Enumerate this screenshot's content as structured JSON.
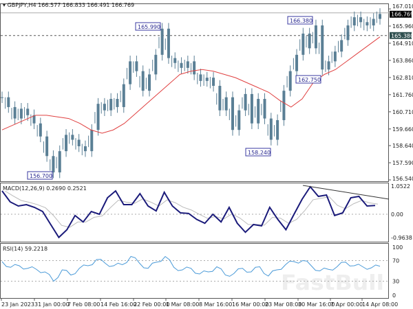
{
  "header": {
    "symbol": "GBPJPY,H4",
    "ohlc": "166.577 166.833 166.491 166.769"
  },
  "watermark": "FastBull",
  "colors": {
    "candle": "#5a7f95",
    "ma": "#e04040",
    "macd": "#1a1a7a",
    "signal": "#bbbbbb",
    "rsi": "#4a9ad8",
    "label_border": "#3a3aa0"
  },
  "chart_data": [
    {
      "type": "bar",
      "title": "GBPJPY,H4",
      "ylim": [
        156.54,
        167.01
      ],
      "yticks": [
        "167.010",
        "165.960",
        "164.910",
        "163.860",
        "162.810",
        "161.760",
        "160.710",
        "159.660",
        "158.640",
        "157.590",
        "156.540"
      ],
      "current_price": "166.769",
      "level_line": "165.380",
      "closes": [
        161.6,
        161.0,
        160.3,
        160.9,
        160.5,
        160.0,
        159.2,
        158.0,
        157.0,
        158.3,
        159.3,
        159.0,
        158.6,
        158.3,
        159.6,
        161.2,
        160.8,
        161.5,
        161.0,
        162.4,
        163.8,
        163.2,
        162.0,
        163.0,
        164.2,
        165.8,
        164.0,
        163.7,
        163.4,
        163.8,
        163.0,
        162.6,
        162.8,
        162.3,
        160.8,
        161.6,
        159.6,
        160.8,
        161.8,
        160.0,
        161.5,
        160.3,
        159.0,
        160.2,
        162.0,
        163.2,
        164.2,
        165.5,
        164.6,
        166.0,
        163.3,
        163.8,
        164.4,
        165.1,
        166.0,
        166.5,
        166.2,
        166.0,
        166.4,
        166.7
      ],
      "moving_average": [
        159.6,
        159.9,
        160.2,
        160.5,
        160.5,
        160.4,
        160.3,
        160.0,
        159.6,
        159.4,
        159.6,
        160.0,
        160.6,
        161.2,
        161.8,
        162.4,
        163.0,
        163.2,
        163.3,
        163.2,
        163.0,
        162.8,
        162.5,
        162.2,
        161.9,
        161.4,
        161.0,
        161.5,
        162.5,
        163.0,
        163.3,
        163.8,
        164.3,
        164.8,
        165.3
      ],
      "annotations": [
        "165.990",
        "156.700",
        "158.240",
        "166.380",
        "162.750"
      ]
    },
    {
      "type": "line",
      "title": "MACD(12,26,9) 0.2690 0.2521",
      "ylim": [
        -0.9638,
        1.0522
      ],
      "yticks": [
        "1.0522",
        "0.00",
        "-0.9638"
      ],
      "macd": [
        0.85,
        0.45,
        0.3,
        0.35,
        0.25,
        0.1,
        -0.4,
        -0.9,
        -0.6,
        -0.05,
        -0.3,
        0.1,
        0.0,
        0.6,
        0.85,
        0.35,
        0.35,
        0.75,
        0.3,
        0.12,
        0.8,
        0.3,
        0.05,
        0.03,
        -0.2,
        -0.35,
        0.0,
        -0.3,
        0.25,
        -0.35,
        -0.7,
        -0.4,
        -0.45,
        0.25,
        -0.2,
        -0.6,
        0.0,
        0.55,
        1.0,
        0.65,
        0.7,
        -0.05,
        0.05,
        0.6,
        0.65,
        0.3,
        0.32
      ],
      "trendline": [
        1.05,
        0.55
      ]
    },
    {
      "type": "line",
      "title": "RSI(14) 59.2218",
      "ylim": [
        0,
        100
      ],
      "yticks": [
        "100",
        "70",
        "30",
        "0"
      ],
      "levels": [
        70,
        30
      ],
      "rsi": [
        68,
        57,
        60,
        55,
        53,
        48,
        30,
        52,
        42,
        55,
        60,
        72,
        65,
        60,
        62,
        78,
        65,
        55,
        67,
        78,
        57,
        52,
        55,
        44,
        48,
        58,
        42,
        45,
        55,
        48,
        58,
        40,
        52,
        62,
        68,
        70,
        60,
        50,
        53,
        58,
        67,
        60,
        58,
        56,
        59
      ]
    }
  ],
  "xaxis": [
    "23 Jan 2023",
    "31 Jan 00:00",
    "7 Feb 08:00",
    "14 Feb 16:00",
    "22 Feb 00:00",
    "1 Mar 08:00",
    "8 Mar 16:00",
    "16 Mar 00:00",
    "23 Mar 08:00",
    "30 Mar 16:00",
    "7 Apr 00:00",
    "14 Apr 08:00"
  ]
}
